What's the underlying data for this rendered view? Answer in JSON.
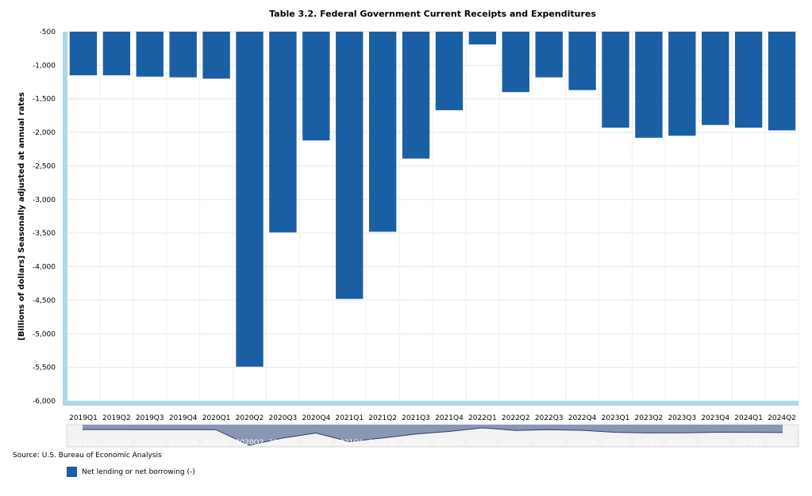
{
  "chart_data": {
    "type": "bar",
    "title": "Table 3.2. Federal Government Current Receipts and Expenditures",
    "ylabel": "[Billions of dollars] Seasonally adjusted at annual rates",
    "xlabel": "",
    "ylim": [
      -6000,
      -500
    ],
    "yticks": [
      -500,
      -1000,
      -1500,
      -2000,
      -2500,
      -3000,
      -3500,
      -4000,
      -4500,
      -5000,
      -5500,
      -6000
    ],
    "ytick_labels": [
      "-500",
      "-1,000",
      "-1,500",
      "-2,000",
      "-2,500",
      "-3,000",
      "-3,500",
      "-4,000",
      "-4,500",
      "-5,000",
      "-5,500",
      "-6,000"
    ],
    "categories": [
      "2019Q1",
      "2019Q2",
      "2019Q3",
      "2019Q4",
      "2020Q1",
      "2020Q2",
      "2020Q3",
      "2020Q4",
      "2021Q1",
      "2021Q2",
      "2021Q3",
      "2021Q4",
      "2022Q1",
      "2022Q2",
      "2022Q3",
      "2022Q4",
      "2023Q1",
      "2023Q2",
      "2023Q3",
      "2023Q4",
      "2024Q1",
      "2024Q2"
    ],
    "series": [
      {
        "name": "Net lending or net borrowing (-)",
        "color": "#1a5fa3",
        "values": [
          -1150,
          -1150,
          -1170,
          -1180,
          -1200,
          -5490,
          -3490,
          -2120,
          -4480,
          -3480,
          -2390,
          -1670,
          -690,
          -1400,
          -1180,
          -1370,
          -1930,
          -2080,
          -2050,
          -1890,
          -1930,
          -1970
        ]
      }
    ],
    "grid": true,
    "legend_position": "bottom-left"
  },
  "source": "Source: U.S. Bureau of Economic Analysis",
  "colors": {
    "bar": "#1a5fa3",
    "axis_border": "#add8e6",
    "grid": "#e6e6e6",
    "navigator_fill": "#8a97b3",
    "navigator_line": "#2b3a7a"
  }
}
